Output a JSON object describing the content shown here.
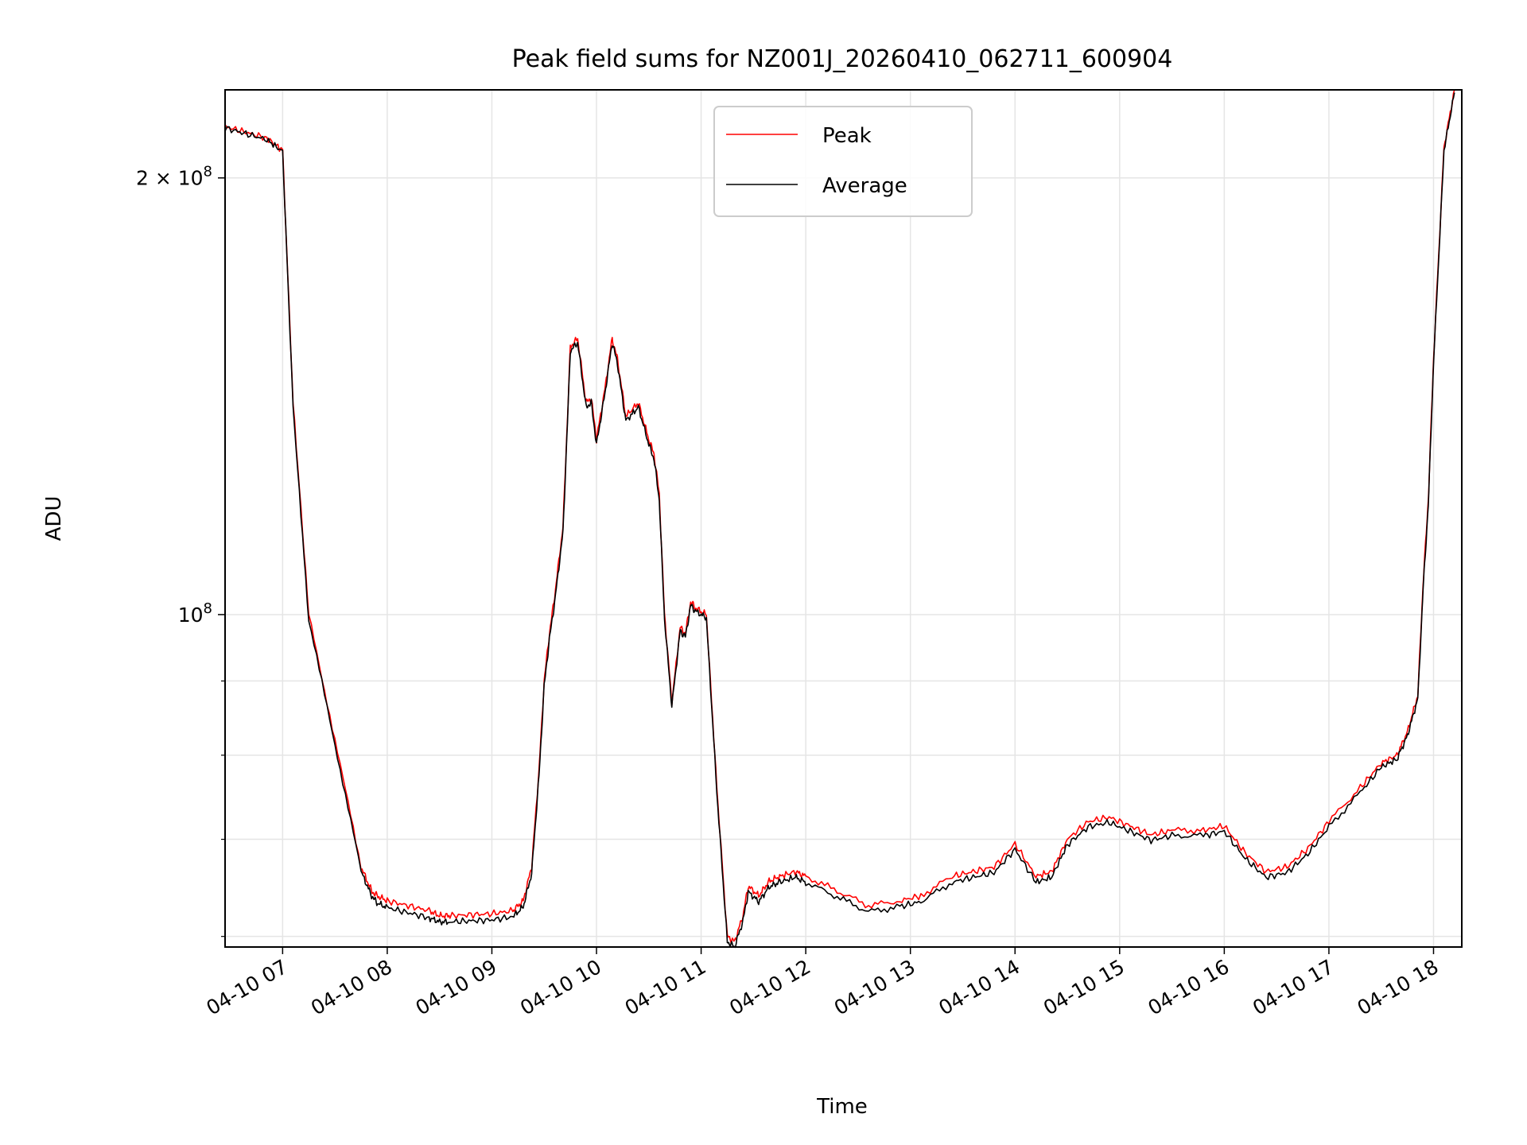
{
  "chart_data": {
    "type": "line",
    "title": "Peak field sums for NZ001J_20260410_062711_600904",
    "xlabel": "Time",
    "ylabel": "ADU",
    "yscale": "log",
    "grid": true,
    "legend_position": "upper center",
    "x_range": [
      "2026-04-10 06:27",
      "2026-04-10 18:16"
    ],
    "ylim": [
      59000000,
      230000000
    ],
    "x_tick_labels": [
      "04-10 07",
      "04-10 08",
      "04-10 09",
      "04-10 10",
      "04-10 11",
      "04-10 12",
      "04-10 13",
      "04-10 14",
      "04-10 15",
      "04-10 16",
      "04-10 17",
      "04-10 18"
    ],
    "x_tick_hours": [
      7,
      8,
      9,
      10,
      11,
      12,
      13,
      14,
      15,
      16,
      17,
      18
    ],
    "y_major_ticks": [
      {
        "value": 100000000,
        "label_base": "10",
        "label_exp": "8"
      },
      {
        "value": 200000000,
        "label_base": "2 × 10",
        "label_exp": "8"
      }
    ],
    "y_minor_ticks": [
      60000000,
      70000000,
      80000000,
      90000000
    ],
    "time_hours": [
      6.45,
      6.65,
      6.85,
      7.0,
      7.1,
      7.25,
      7.5,
      7.75,
      7.85,
      7.9,
      8.0,
      8.2,
      8.4,
      8.5,
      8.6,
      8.8,
      9.0,
      9.2,
      9.3,
      9.38,
      9.45,
      9.5,
      9.55,
      9.6,
      9.68,
      9.75,
      9.82,
      9.9,
      9.95,
      10.0,
      10.08,
      10.15,
      10.2,
      10.28,
      10.4,
      10.5,
      10.55,
      10.6,
      10.65,
      10.72,
      10.8,
      10.85,
      10.9,
      10.95,
      11.05,
      11.15,
      11.25,
      11.32,
      11.4,
      11.45,
      11.55,
      11.65,
      11.75,
      11.9,
      12.0,
      12.3,
      12.6,
      12.9,
      13.1,
      13.4,
      13.6,
      13.8,
      14.0,
      14.2,
      14.35,
      14.5,
      14.7,
      14.9,
      15.1,
      15.3,
      15.5,
      15.8,
      16.0,
      16.2,
      16.4,
      16.6,
      16.8,
      17.0,
      17.3,
      17.5,
      17.65,
      17.75,
      17.85,
      17.9,
      17.95,
      18.0,
      18.1,
      18.2
    ],
    "series": [
      {
        "name": "Peak",
        "color": "#ff0000",
        "values": [
          217000000,
          215000000,
          213000000,
          209000000,
          140000000,
          100000000,
          82000000,
          67000000,
          64500000,
          64000000,
          63500000,
          63000000,
          62500000,
          62000000,
          62000000,
          62100000,
          62200000,
          62500000,
          63500000,
          67000000,
          78000000,
          90000000,
          97000000,
          103000000,
          115000000,
          153000000,
          155000000,
          140000000,
          141000000,
          132000000,
          143000000,
          155000000,
          150000000,
          137000000,
          140000000,
          132000000,
          129000000,
          121000000,
          100000000,
          87000000,
          98000000,
          97000000,
          102000000,
          101000000,
          100000000,
          76000000,
          60000000,
          59500000,
          62000000,
          65000000,
          64000000,
          65500000,
          66000000,
          66500000,
          66000000,
          64500000,
          63000000,
          63500000,
          64000000,
          66000000,
          66500000,
          67000000,
          69500000,
          66000000,
          66500000,
          70000000,
          72000000,
          72500000,
          71500000,
          70500000,
          71000000,
          71000000,
          71500000,
          68500000,
          66500000,
          67000000,
          69000000,
          72000000,
          76000000,
          79000000,
          80000000,
          83000000,
          88000000,
          105000000,
          120000000,
          150000000,
          210000000,
          230000000
        ]
      },
      {
        "name": "Average",
        "color": "#000000",
        "values": [
          216500000,
          214500000,
          212500000,
          208500000,
          139000000,
          99000000,
          81500000,
          66500000,
          64000000,
          63300000,
          62800000,
          62300000,
          61800000,
          61400000,
          61400000,
          61500000,
          61600000,
          61900000,
          62900000,
          66300000,
          77300000,
          89300000,
          96200000,
          102000000,
          114000000,
          152000000,
          154000000,
          139000000,
          140000000,
          131000000,
          142000000,
          154000000,
          149000000,
          136000000,
          139000000,
          131000000,
          128000000,
          120000000,
          99300000,
          86500000,
          97500000,
          96500000,
          101500000,
          100500000,
          99500000,
          75500000,
          59500000,
          59000000,
          61500000,
          64400000,
          63400000,
          64900000,
          65400000,
          65900000,
          65400000,
          63900000,
          62400000,
          62900000,
          63400000,
          65400000,
          65900000,
          66400000,
          68900000,
          65400000,
          65900000,
          69400000,
          71400000,
          71900000,
          70900000,
          69900000,
          70400000,
          70400000,
          70900000,
          67900000,
          65900000,
          66400000,
          68400000,
          71400000,
          75400000,
          78500000,
          79500000,
          82500000,
          87500000,
          104000000,
          119000000,
          149000000,
          209000000,
          229000000
        ]
      }
    ]
  }
}
